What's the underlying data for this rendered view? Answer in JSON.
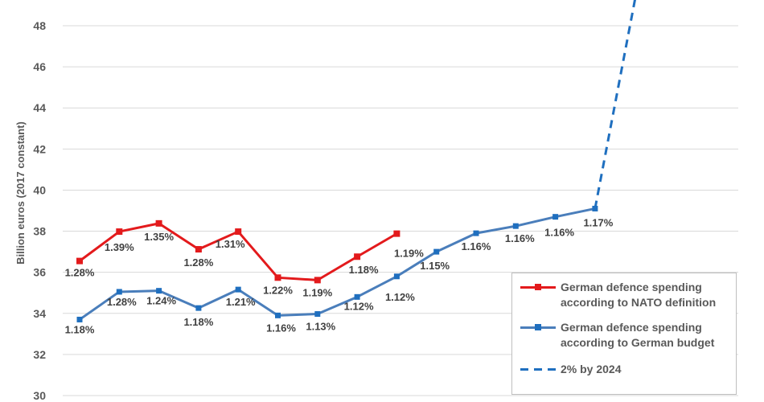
{
  "chart_data": {
    "type": "line",
    "ylabel": "Billion euros (2017 constant)",
    "ylim": [
      30,
      48
    ],
    "yticks": [
      "30",
      "32",
      "34",
      "36",
      "38",
      "40",
      "42",
      "44",
      "46",
      "48"
    ],
    "grid": true,
    "legend_position": "bottom-right",
    "series": [
      {
        "name": "German defence spending according to NATO definition",
        "color": "#e31a1c",
        "marker": "square",
        "values": [
          36.55,
          37.98,
          38.38,
          37.12,
          37.98,
          35.74,
          35.62,
          36.76,
          37.88
        ],
        "labels": [
          "1.28%",
          "1.39%",
          "1.35%",
          "1.28%",
          "1.31%",
          "1.22%",
          "1.19%",
          "1.18%",
          "1.19%"
        ]
      },
      {
        "name": "German defence spending according to German budget",
        "color": "#4a7ebb",
        "marker": "square",
        "values": [
          33.7,
          35.05,
          35.1,
          34.26,
          35.16,
          33.9,
          33.97,
          34.8,
          35.8,
          37.0,
          37.9,
          38.25,
          38.7,
          39.1
        ],
        "labels": [
          "1.18%",
          "1.28%",
          "1.24%",
          "1.18%",
          "1.21%",
          "1.16%",
          "1.13%",
          "1.12%",
          "1.12%",
          "1.15%",
          "1.16%",
          "1.16%",
          "1.16%",
          "1.17%"
        ]
      },
      {
        "name": "2% by 2024",
        "color": "#1f6fbf",
        "dashed": true,
        "x_index": [
          13,
          14
        ],
        "values": [
          39.1,
          49.3
        ]
      }
    ]
  }
}
